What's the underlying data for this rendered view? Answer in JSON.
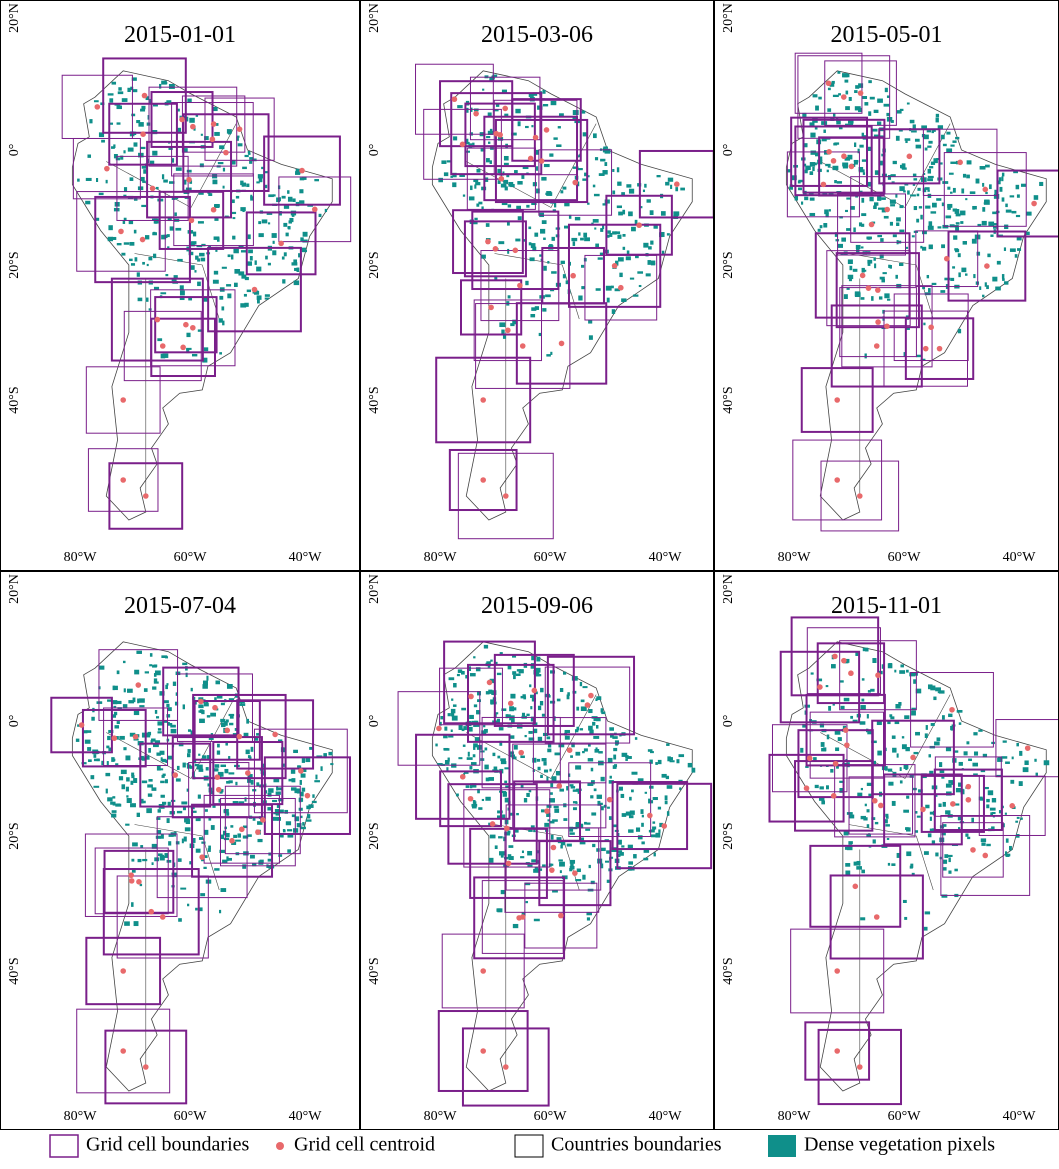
{
  "panels": [
    {
      "title": "2015-01-01"
    },
    {
      "title": "2015-03-06"
    },
    {
      "title": "2015-05-01"
    },
    {
      "title": "2015-07-04"
    },
    {
      "title": "2015-09-06"
    },
    {
      "title": "2015-11-01"
    }
  ],
  "lat_labels": [
    "20°N",
    "0°",
    "20°S",
    "40°S"
  ],
  "lon_labels": [
    "80°W",
    "60°W",
    "40°W"
  ],
  "legend": [
    {
      "label": "Grid cell boundaries"
    },
    {
      "label": "Grid cell centroid"
    },
    {
      "label": "Countries boundaries"
    },
    {
      "label": "Dense vegetation pixels"
    }
  ]
}
